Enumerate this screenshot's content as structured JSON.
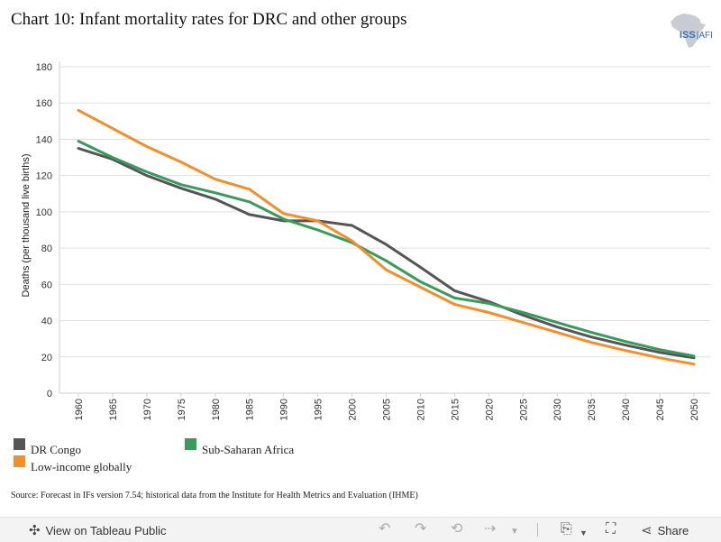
{
  "title": "Chart 10: Infant mortality rates for DRC and other groups",
  "logo": {
    "main": "ISS",
    "sub": "AFI",
    "icon": "africa-map-icon"
  },
  "source": "Source: Forecast in IFs version 7.54; historical data from the Institute for Health Metrics and Evaluation (IHME)",
  "toolbar": {
    "view_label": "View on Tableau Public",
    "share_label": "Share",
    "icons": [
      "tableau-logo-icon",
      "undo-icon",
      "redo-icon",
      "revert-icon",
      "refresh-icon",
      "dropdown-arrow-icon",
      "download-icon",
      "fullscreen-icon",
      "share-icon"
    ]
  },
  "chart_data": {
    "type": "line",
    "title": "Chart 10: Infant mortality rates for DRC and other groups",
    "xlabel": "",
    "ylabel": "Deaths (per thousand live births)",
    "x": [
      "1960",
      "1965",
      "1970",
      "1975",
      "1980",
      "1985",
      "1990",
      "1995",
      "2000",
      "2005",
      "2010",
      "2015",
      "2020",
      "2025",
      "2030",
      "2035",
      "2040",
      "2045",
      "2050"
    ],
    "ylim": [
      0,
      180
    ],
    "yticks": [
      "0",
      "20",
      "40",
      "60",
      "80",
      "100",
      "120",
      "140",
      "160",
      "180"
    ],
    "grid": true,
    "legend_position": "bottom-left",
    "series": [
      {
        "name": "DR Congo",
        "color": "#555555",
        "values": [
          135,
          129,
          120,
          113,
          107,
          98.5,
          95,
          95,
          92.5,
          82,
          69.5,
          56.5,
          50.5,
          43,
          36.5,
          31,
          26.5,
          22.5,
          19.5
        ]
      },
      {
        "name": "Sub-Saharan Africa",
        "color": "#3a9a5b",
        "values": [
          139,
          130,
          122,
          115,
          110.5,
          105.5,
          96,
          90,
          83,
          73,
          61.5,
          52.5,
          49.5,
          44.5,
          39,
          33.5,
          28.5,
          24,
          20.5
        ]
      },
      {
        "name": "Low-income globally",
        "color": "#f28e2b",
        "values": [
          156,
          146,
          136,
          127.5,
          118,
          112.5,
          99,
          95,
          84,
          68,
          58.5,
          49,
          44.5,
          39,
          33.5,
          28,
          23.5,
          19.5,
          16
        ]
      }
    ]
  }
}
